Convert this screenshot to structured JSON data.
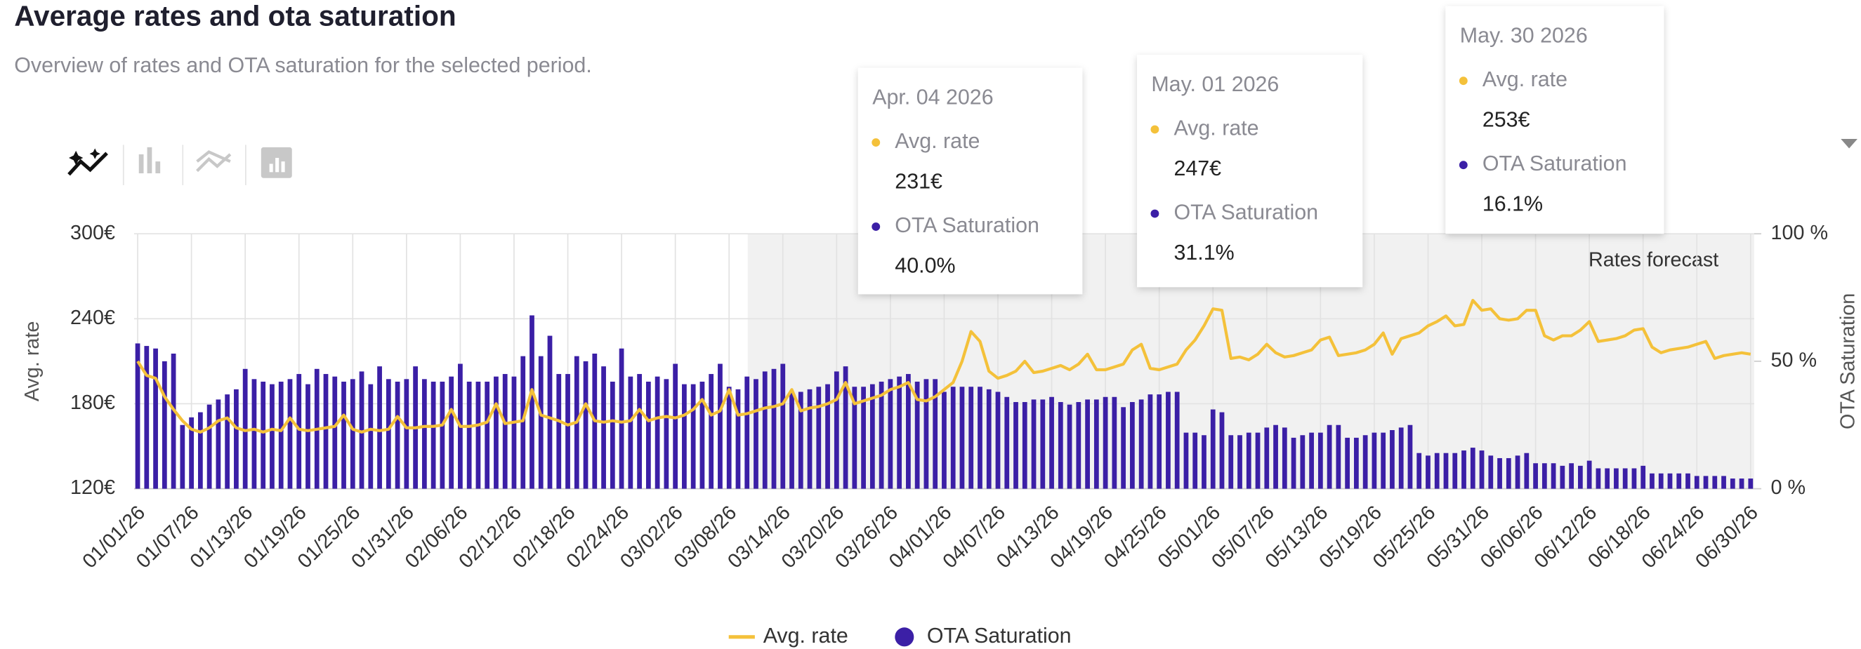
{
  "chart_data": {
    "type": "bar-line",
    "title": "Average rates and ota saturation",
    "subtitle": "Overview of rates and OTA saturation for the selected period.",
    "y_label": "Avg. rate",
    "y2_label": "OTA Saturation",
    "forecast_label": "Rates forecast",
    "categories": [
      "01/01/26",
      null,
      null,
      null,
      null,
      null,
      "01/07/26",
      null,
      null,
      null,
      null,
      null,
      "01/13/26",
      null,
      null,
      null,
      null,
      null,
      "01/19/26",
      null,
      null,
      null,
      null,
      null,
      "01/25/26",
      null,
      null,
      null,
      null,
      null,
      "01/31/26",
      null,
      null,
      null,
      null,
      null,
      "02/06/26",
      null,
      null,
      null,
      null,
      null,
      "02/12/26",
      null,
      null,
      null,
      null,
      null,
      "02/18/26",
      null,
      null,
      null,
      null,
      null,
      "02/24/26",
      null,
      null,
      null,
      null,
      null,
      "03/02/26",
      null,
      null,
      null,
      null,
      null,
      "03/08/26",
      null,
      null,
      null,
      null,
      null,
      "03/14/26",
      null,
      null,
      null,
      null,
      null,
      "03/20/26",
      null,
      null,
      null,
      null,
      null,
      "03/26/26",
      null,
      null,
      null,
      null,
      null,
      "04/01/26",
      null,
      null,
      null,
      null,
      null,
      "04/07/26",
      null,
      null,
      null,
      null,
      null,
      "04/13/26",
      null,
      null,
      null,
      null,
      null,
      "04/19/26",
      null,
      null,
      null,
      null,
      null,
      "04/25/26",
      null,
      null,
      null,
      null,
      null,
      "05/01/26",
      null,
      null,
      null,
      null,
      null,
      "05/07/26",
      null,
      null,
      null,
      null,
      null,
      "05/13/26",
      null,
      null,
      null,
      null,
      null,
      "05/19/26",
      null,
      null,
      null,
      null,
      null,
      "05/25/26",
      null,
      null,
      null,
      null,
      null,
      "05/31/26",
      null,
      null,
      null,
      null,
      null,
      "06/06/26",
      null,
      null,
      null,
      null,
      null,
      "06/12/26",
      null,
      null,
      null,
      null,
      null,
      "06/18/26",
      null,
      null,
      null,
      null,
      null,
      "06/24/26",
      null,
      null,
      null,
      null,
      null,
      "06/30/26"
    ],
    "series": [
      {
        "name": "Avg. rate",
        "color": "#f4c13a",
        "type": "line",
        "axis": "y",
        "values": [
          210,
          200,
          198,
          185,
          176,
          168,
          162,
          160,
          163,
          168,
          170,
          163,
          161,
          162,
          160,
          162,
          161,
          170,
          162,
          161,
          162,
          163,
          164,
          172,
          162,
          160,
          162,
          161,
          162,
          171,
          163,
          163,
          164,
          164,
          165,
          176,
          164,
          164,
          165,
          167,
          180,
          166,
          167,
          168,
          190,
          172,
          170,
          168,
          165,
          167,
          180,
          168,
          167,
          168,
          167,
          168,
          176,
          168,
          170,
          171,
          170,
          172,
          176,
          183,
          172,
          175,
          190,
          172,
          173,
          175,
          177,
          178,
          180,
          190,
          175,
          177,
          178,
          180,
          183,
          195,
          180,
          182,
          184,
          186,
          190,
          192,
          195,
          183,
          182,
          185,
          190,
          195,
          210,
          231,
          224,
          203,
          198,
          200,
          203,
          210,
          202,
          203,
          205,
          207,
          204,
          208,
          215,
          204,
          204,
          206,
          208,
          218,
          222,
          205,
          204,
          206,
          208,
          218,
          225,
          235,
          247,
          246,
          212,
          213,
          211,
          215,
          222,
          216,
          213,
          214,
          216,
          218,
          225,
          227,
          214,
          215,
          216,
          218,
          222,
          230,
          215,
          226,
          228,
          230,
          235,
          238,
          242,
          235,
          236,
          253,
          246,
          247,
          240,
          239,
          240,
          246,
          246,
          228,
          225,
          228,
          228,
          232,
          238,
          224,
          225,
          226,
          228,
          232,
          233,
          220,
          216,
          218,
          219,
          220,
          222,
          224,
          212,
          214,
          215,
          216,
          215
        ]
      },
      {
        "name": "OTA Saturation",
        "color": "#3b1fa6",
        "type": "bar",
        "axis": "y2",
        "values": [
          57,
          56,
          55,
          50,
          53,
          25,
          28,
          30,
          33,
          35,
          37,
          39,
          47,
          43,
          42,
          41,
          42,
          43,
          45,
          41,
          47,
          45,
          44,
          42,
          43,
          46,
          41,
          48,
          43,
          42,
          43,
          48,
          43,
          42,
          42,
          44,
          49,
          42,
          42,
          42,
          44,
          45,
          44,
          52,
          68,
          52,
          60,
          45,
          45,
          52,
          50,
          53,
          48,
          42,
          55,
          44,
          45,
          42,
          44,
          43,
          49,
          41,
          41,
          42,
          45,
          49,
          40,
          39,
          44,
          43,
          46,
          47,
          49,
          38,
          38,
          39,
          40,
          41,
          46,
          48,
          40,
          40,
          41,
          42,
          43,
          44,
          45,
          42,
          43,
          43,
          38,
          40,
          40,
          40,
          40,
          39,
          38,
          36,
          34,
          34,
          35,
          35,
          36,
          34,
          33,
          34,
          35,
          35,
          36,
          36,
          32,
          34,
          35,
          37,
          37,
          38,
          38,
          22,
          22,
          21,
          31.1,
          30,
          21,
          21,
          22,
          22,
          24,
          25,
          24,
          20,
          21,
          22,
          22,
          25,
          25,
          20,
          20,
          21,
          22,
          22,
          23,
          24,
          25,
          14,
          13,
          14,
          14,
          14,
          15,
          16.1,
          15,
          13,
          12,
          12,
          13,
          14,
          10,
          10,
          10,
          9,
          10,
          9,
          11,
          8,
          8,
          8,
          8,
          8,
          9,
          6,
          6,
          6,
          6,
          6,
          5,
          5,
          5,
          5,
          4,
          4,
          4
        ]
      }
    ],
    "ylim": [
      120,
      300
    ],
    "yticks": [
      {
        "value": 120,
        "label": "120€"
      },
      {
        "value": 180,
        "label": "180€"
      },
      {
        "value": 240,
        "label": "240€"
      },
      {
        "value": 300,
        "label": "300€"
      }
    ],
    "y2lim": [
      0,
      100
    ],
    "y2ticks": [
      {
        "value": 0,
        "label": "0 %"
      },
      {
        "value": 50,
        "label": "50 %"
      },
      {
        "value": 100,
        "label": "100 %"
      }
    ],
    "grid": true,
    "legend": "bottom",
    "tooltips": [
      {
        "date": "Apr. 04 2026",
        "items": [
          {
            "name": "Avg. rate",
            "value": "231€"
          },
          {
            "name": "OTA Saturation",
            "value": "40.0%"
          }
        ]
      },
      {
        "date": "May. 01 2026",
        "items": [
          {
            "name": "Avg. rate",
            "value": "247€"
          },
          {
            "name": "OTA Saturation",
            "value": "31.1%"
          }
        ]
      },
      {
        "date": "May. 30 2026",
        "items": [
          {
            "name": "Avg. rate",
            "value": "253€"
          },
          {
            "name": "OTA Saturation",
            "value": "16.1%"
          }
        ]
      }
    ]
  }
}
